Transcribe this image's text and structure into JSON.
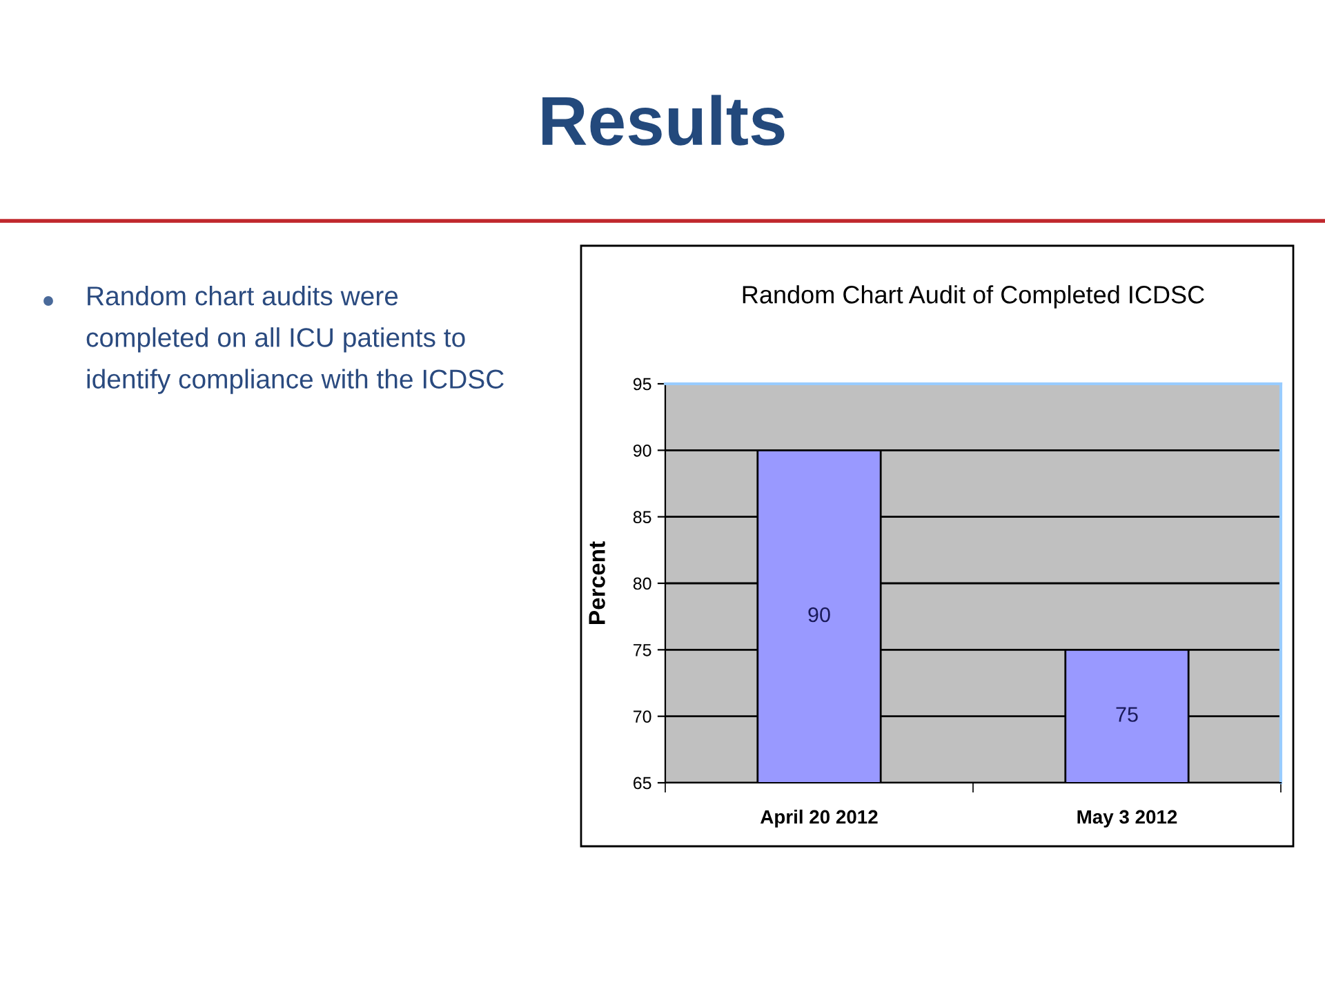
{
  "chart_data": {
    "type": "bar",
    "title": "Random Chart Audit of Completed ICDSC",
    "ylabel": "Percent",
    "categories": [
      "April 20 2012",
      "May 3 2012"
    ],
    "values": [
      90,
      75
    ],
    "color": "#9999ff",
    "ylim": [
      65,
      95
    ],
    "yticks": [
      65,
      70,
      75,
      80,
      85,
      90,
      95
    ],
    "grid": "y",
    "data_labels": true,
    "annotations": [
      "Results",
      "Random chart audits were completed on all ICU patients to identify compliance with the ICDSC"
    ]
  }
}
